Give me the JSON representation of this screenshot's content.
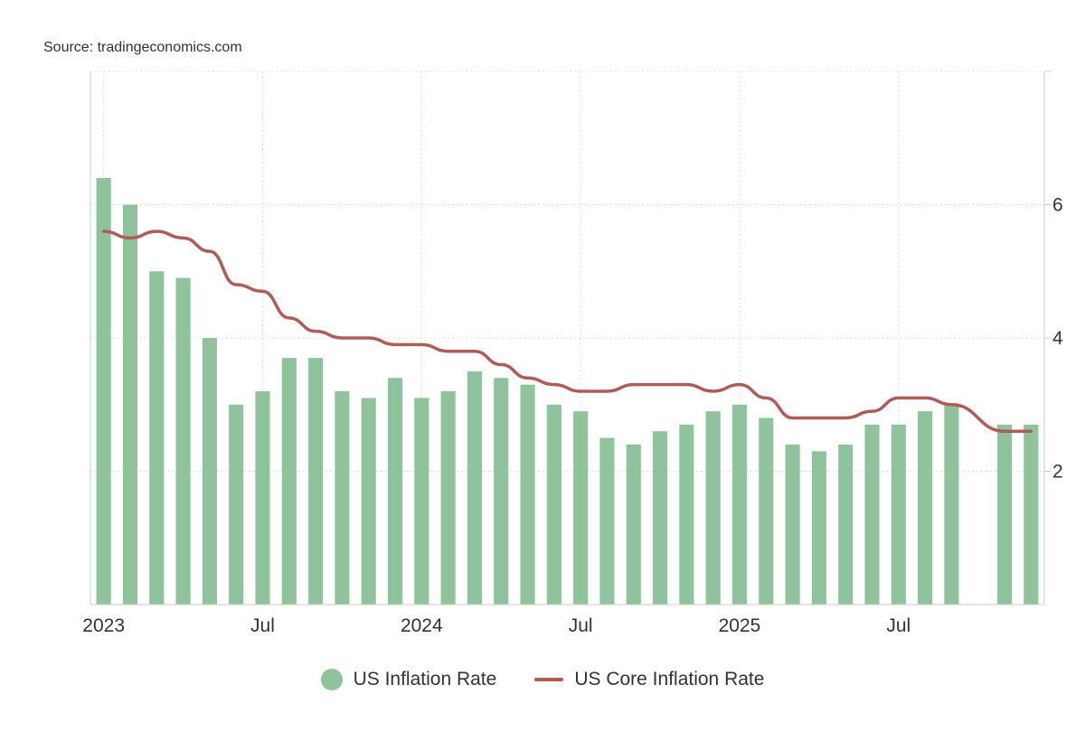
{
  "source": "Source: tradingeconomics.com",
  "colors": {
    "bars": "#8fc39c",
    "line": "#b05b58",
    "grid": "#dddddd",
    "axis": "#cccccc"
  },
  "chart_data": {
    "type": "bar",
    "x": [
      "2023-01",
      "2023-02",
      "2023-03",
      "2023-04",
      "2023-05",
      "2023-06",
      "2023-07",
      "2023-08",
      "2023-09",
      "2023-10",
      "2023-11",
      "2023-12",
      "2024-01",
      "2024-02",
      "2024-03",
      "2024-04",
      "2024-05",
      "2024-06",
      "2024-07",
      "2024-08",
      "2024-09",
      "2024-10",
      "2024-11",
      "2024-12",
      "2025-01",
      "2025-02",
      "2025-03",
      "2025-04",
      "2025-05",
      "2025-06",
      "2025-07",
      "2025-08",
      "2025-09",
      "2025-10",
      "2025-11",
      "2025-12"
    ],
    "x_tick_labels": [
      {
        "x": "2023-01",
        "label": "2023"
      },
      {
        "x": "2023-07",
        "label": "Jul"
      },
      {
        "x": "2024-01",
        "label": "2024"
      },
      {
        "x": "2024-07",
        "label": "Jul"
      },
      {
        "x": "2025-01",
        "label": "2025"
      },
      {
        "x": "2025-07",
        "label": "Jul"
      }
    ],
    "y_ticks": [
      2,
      4,
      6
    ],
    "ylim": [
      0,
      8
    ],
    "grid": true,
    "legend_position": "bottom",
    "series": [
      {
        "name": "US Inflation Rate",
        "type": "bar",
        "values": [
          6.4,
          6.0,
          5.0,
          4.9,
          4.0,
          3.0,
          3.2,
          3.7,
          3.7,
          3.2,
          3.1,
          3.4,
          3.1,
          3.2,
          3.5,
          3.4,
          3.3,
          3.0,
          2.9,
          2.5,
          2.4,
          2.6,
          2.7,
          2.9,
          3.0,
          2.8,
          2.4,
          2.3,
          2.4,
          2.7,
          2.7,
          2.9,
          3.0,
          null,
          2.7,
          2.7
        ]
      },
      {
        "name": "US Core Inflation Rate",
        "type": "line",
        "values": [
          5.6,
          5.5,
          5.6,
          5.5,
          5.3,
          4.8,
          4.7,
          4.3,
          4.1,
          4.0,
          4.0,
          3.9,
          3.9,
          3.8,
          3.8,
          3.6,
          3.4,
          3.3,
          3.2,
          3.2,
          3.3,
          3.3,
          3.3,
          3.2,
          3.3,
          3.1,
          2.8,
          2.8,
          2.8,
          2.9,
          3.1,
          3.1,
          3.0,
          null,
          2.6,
          2.6
        ]
      }
    ]
  }
}
